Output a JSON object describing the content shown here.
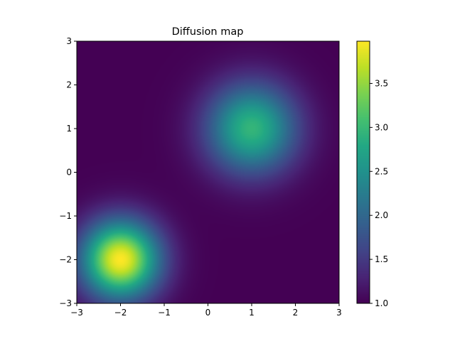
{
  "chart_data": {
    "type": "heatmap",
    "title": "Diffusion map",
    "xlabel": "",
    "ylabel": "",
    "xlim": [
      -3,
      3
    ],
    "ylim": [
      -3,
      3
    ],
    "x_ticks": [
      -3,
      -2,
      -1,
      0,
      1,
      2,
      3
    ],
    "y_ticks": [
      -3,
      -2,
      -1,
      0,
      1,
      2,
      3
    ],
    "x_tick_labels": [
      "−3",
      "−2",
      "−1",
      "0",
      "1",
      "2",
      "3"
    ],
    "y_tick_labels": [
      "−3",
      "−2",
      "−1",
      "0",
      "1",
      "2",
      "3"
    ],
    "grid": false,
    "colormap": "viridis",
    "value_range": [
      1.0,
      3.98
    ],
    "colorbar_ticks": [
      1.0,
      1.5,
      2.0,
      2.5,
      3.0,
      3.5
    ],
    "colorbar_tick_labels": [
      "1.0",
      "1.5",
      "2.0",
      "2.5",
      "3.0",
      "3.5"
    ],
    "field": {
      "baseline": 1.0,
      "sources": [
        {
          "x": -2,
          "y": -2,
          "peak": 2.98,
          "sigma": 0.62
        },
        {
          "x": 1,
          "y": 1,
          "peak": 1.95,
          "sigma": 0.72
        }
      ]
    }
  }
}
